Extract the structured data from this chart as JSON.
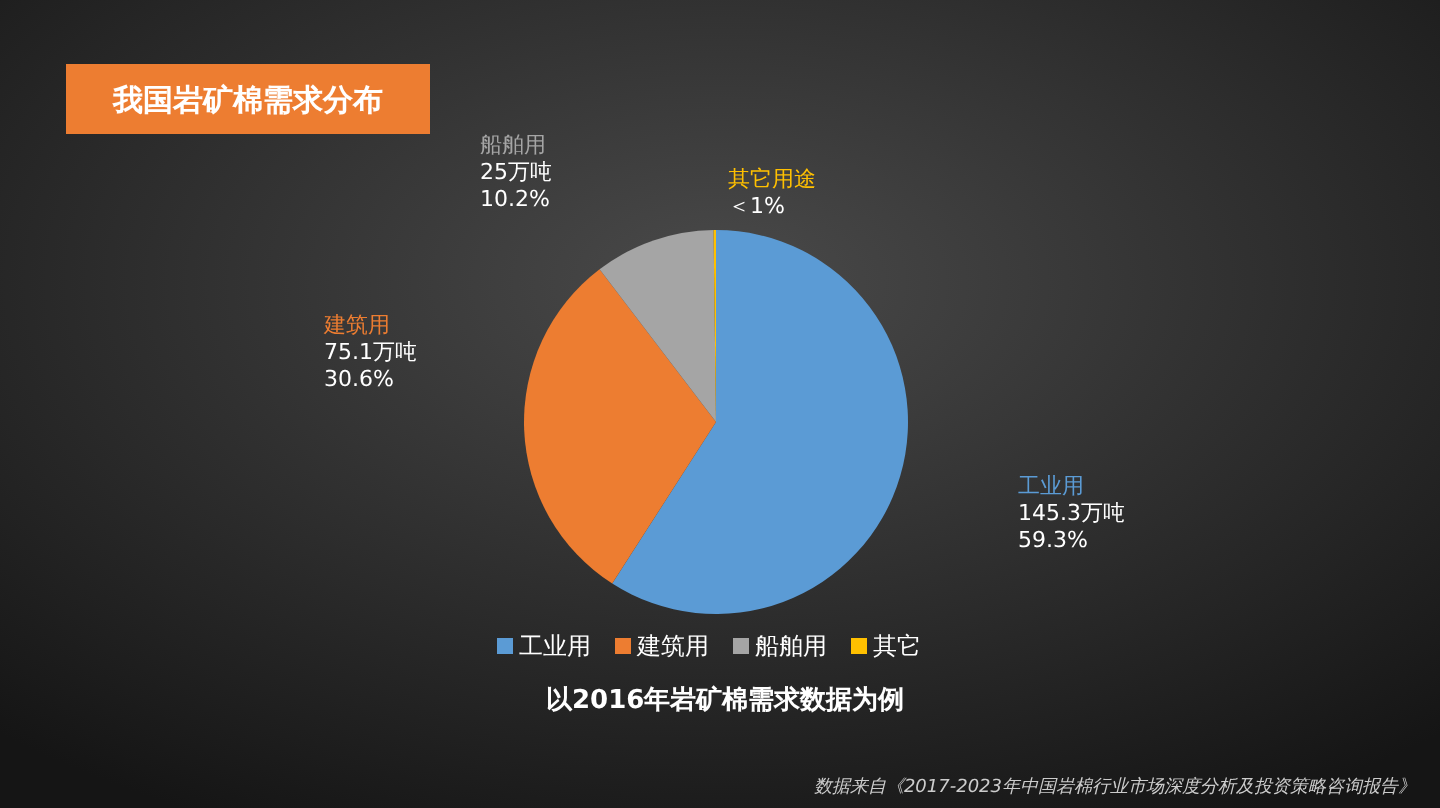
{
  "chart_data": {
    "type": "pie",
    "title": "我国岩矿棉需求分布",
    "categories": [
      "工业用",
      "建筑用",
      "船舶用",
      "其它"
    ],
    "values": [
      145.3,
      75.1,
      25,
      0.5
    ],
    "colors": [
      "#5b9bd5",
      "#ed7d31",
      "#a5a5a5",
      "#ffc000"
    ],
    "value_labels": [
      "工业用145.3万吨59.3%",
      "建筑用75.1万吨30.6%",
      "船舶用25万吨10.2%",
      "其它用途＜1%"
    ],
    "legend": "bottom",
    "annotations": [
      "以2016年岩矿棉需求数据为例",
      "数据来自《2017-2023年中国岩棉行业市场深度分析及投资策略咨询报告》"
    ]
  }
}
